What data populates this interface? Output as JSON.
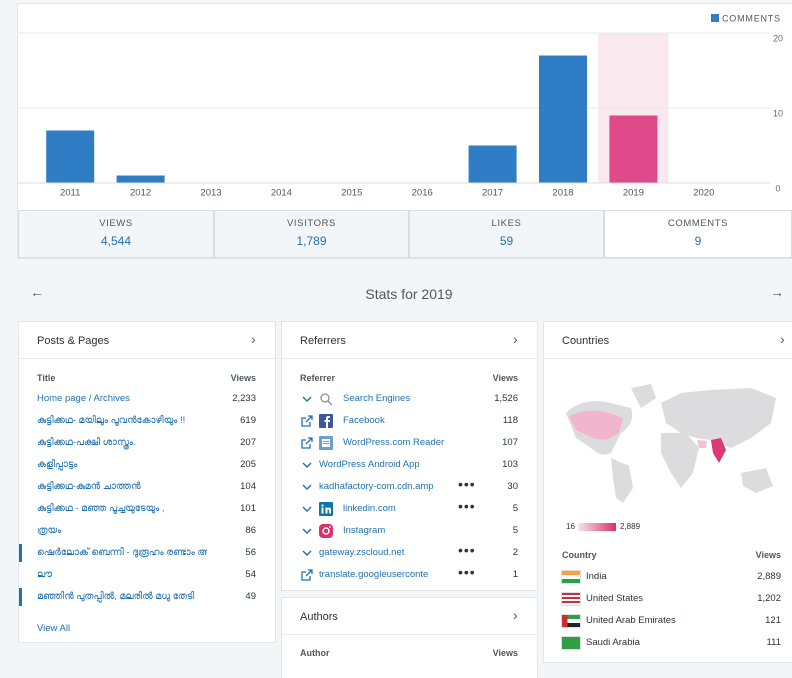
{
  "chart_data": {
    "type": "bar",
    "categories": [
      "2011",
      "2012",
      "2013",
      "2014",
      "2015",
      "2016",
      "2017",
      "2018",
      "2019",
      "2020"
    ],
    "series": [
      {
        "name": "COMMENTS",
        "color": "#2f7dc4",
        "values": [
          7,
          1,
          0,
          0,
          0,
          0,
          5,
          17,
          9,
          0
        ]
      }
    ],
    "ylim": [
      0,
      20
    ],
    "yticks": [
      0,
      10,
      20
    ],
    "grid": true,
    "legend": "top-right",
    "highlight": {
      "index": 8,
      "color": "#e0498a",
      "band_color": "#f9e8ee"
    }
  },
  "summary_tabs": [
    {
      "label": "VIEWS",
      "value": "4,544"
    },
    {
      "label": "VISITORS",
      "value": "1,789"
    },
    {
      "label": "LIKES",
      "value": "59"
    },
    {
      "label": "COMMENTS",
      "value": "9"
    }
  ],
  "period": {
    "title": "Stats for 2019"
  },
  "posts": {
    "title": "Posts & Pages",
    "columns": [
      "Title",
      "Views"
    ],
    "rows": [
      [
        "Home page / Archives",
        "2,233"
      ],
      [
        "കുട്ടിക്കഥ- മയിലും പൂവൻകോഴിയും !!",
        "619"
      ],
      [
        "കുട്ടിക്കഥ-പക്ഷി ശാസ്ത്രം.",
        "207"
      ],
      [
        "കളിപ്പാട്ടം",
        "205"
      ],
      [
        "കുട്ടിക്കഥ-കുമൻ ചാത്തൻ",
        "104"
      ],
      [
        "കുട്ടിക്കഥ - മഞ്ഞ പൂച്ചയുടേയും ,",
        "101"
      ],
      [
        "ത്രയം",
        "86"
      ],
      [
        "ഷെർലോക് ബെന്നി - ദുരൂഹം രണ്ടാം അ",
        "56"
      ],
      [
        "ലൗ",
        "54"
      ],
      [
        "മഞ്ഞിൻ പുതപ്പിൽ, മലരിൽ മധു തേടി",
        "49"
      ]
    ],
    "view_all": "View All"
  },
  "referrers": {
    "title": "Referrers",
    "columns": [
      "Referrer",
      "Views"
    ],
    "rows": [
      [
        "Search Engines",
        "1,526"
      ],
      [
        "Facebook",
        "118"
      ],
      [
        "WordPress.com Reader",
        "107"
      ],
      [
        "WordPress Android App",
        "103"
      ],
      [
        "kadhafactory-com.cdn.amp",
        "30"
      ],
      [
        "linkedin.com",
        "5"
      ],
      [
        "Instagram",
        "5"
      ],
      [
        "gateway.zscloud.net",
        "2"
      ],
      [
        "translate.googleuserconte",
        "1"
      ]
    ]
  },
  "authors": {
    "title": "Authors",
    "columns": [
      "Author",
      "Views"
    ]
  },
  "countries": {
    "title": "Countries",
    "legend": [
      "16",
      "2,889"
    ],
    "columns": [
      "Country",
      "Views"
    ],
    "rows": [
      [
        "India",
        "2,889"
      ],
      [
        "United States",
        "1,202"
      ],
      [
        "United Arab Emirates",
        "121"
      ],
      [
        "Saudi Arabia",
        "111"
      ]
    ]
  }
}
